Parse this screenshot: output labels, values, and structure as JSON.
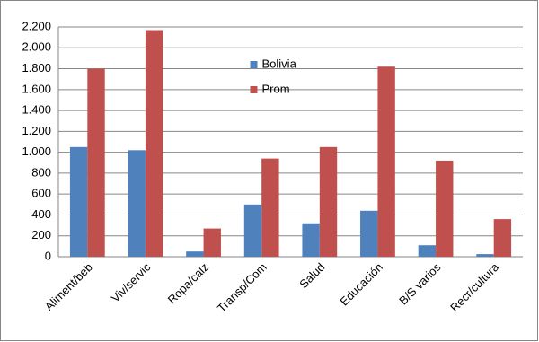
{
  "chart_data": {
    "type": "bar",
    "categories": [
      "Aliment/beb",
      "Viv/servic",
      "Ropa/calz",
      "Transp/Com",
      "Salud",
      "Educación",
      "B/S varios",
      "Recr/cultura"
    ],
    "series": [
      {
        "name": "Bolivia",
        "color": "#4f81bd",
        "values": [
          1050,
          1020,
          50,
          500,
          320,
          440,
          110,
          25
        ]
      },
      {
        "name": "Prom",
        "color": "#c0504d",
        "values": [
          1800,
          2170,
          270,
          940,
          1050,
          1820,
          920,
          360
        ]
      }
    ],
    "ylim": [
      0,
      2200
    ],
    "yticks": [
      0,
      200,
      400,
      600,
      800,
      {
        "value": 1000,
        "label": "1.000"
      },
      {
        "value": 1200,
        "label": "1.200"
      },
      {
        "value": 1400,
        "label": "1.400"
      },
      {
        "value": 1600,
        "label": "1.600"
      },
      {
        "value": 1800,
        "label": "1.800"
      },
      {
        "value": 2000,
        "label": "2.000"
      },
      {
        "value": 2200,
        "label": "2.200"
      }
    ],
    "grid": true,
    "legend": "upper-center"
  }
}
